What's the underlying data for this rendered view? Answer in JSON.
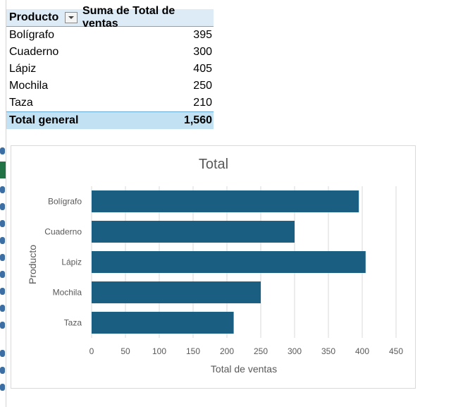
{
  "pivot": {
    "header": {
      "col1": "Producto",
      "col2": "Suma de Total de ventas"
    },
    "rows": [
      {
        "label": "Bolígrafo",
        "value": "395"
      },
      {
        "label": "Cuaderno",
        "value": "300"
      },
      {
        "label": "Lápiz",
        "value": "405"
      },
      {
        "label": "Mochila",
        "value": "250"
      },
      {
        "label": "Taza",
        "value": "210"
      }
    ],
    "total": {
      "label": "Total general",
      "value": "1,560"
    }
  },
  "colors": {
    "bar": "#1a5f82",
    "grid": "#d9d9d9",
    "header_bg": "#dcebf6",
    "total_bg": "#c2e1f3"
  },
  "chart_data": {
    "type": "bar",
    "orientation": "horizontal",
    "title": "Total",
    "xlabel": "Total de ventas",
    "ylabel": "Producto",
    "categories": [
      "Bolígrafo",
      "Cuaderno",
      "Lápiz",
      "Mochila",
      "Taza"
    ],
    "values": [
      395,
      300,
      405,
      250,
      210
    ],
    "xlim": [
      0,
      450
    ],
    "xticks": [
      0,
      50,
      100,
      150,
      200,
      250,
      300,
      350,
      400,
      450
    ],
    "grid": true,
    "legend": "none"
  }
}
